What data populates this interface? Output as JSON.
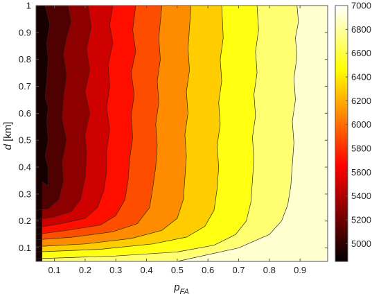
{
  "chart_data": {
    "type": "heatmap",
    "subtype": "filled-contour",
    "x": {
      "label_main": "p",
      "label_sub": "FA",
      "lim": [
        0.04,
        0.99
      ],
      "ticks": [
        0.1,
        0.2,
        0.3,
        0.4,
        0.5,
        0.6,
        0.7,
        0.8,
        0.9
      ],
      "tick_labels": [
        "0.1",
        "0.2",
        "0.3",
        "0.4",
        "0.5",
        "0.6",
        "0.7",
        "0.8",
        "0.9"
      ]
    },
    "y": {
      "label_main": "d",
      "label_unit": "[km]",
      "lim": [
        0.05,
        1.0
      ],
      "ticks": [
        0.1,
        0.2,
        0.3,
        0.4,
        0.5,
        0.6,
        0.7,
        0.8,
        0.9,
        1.0
      ],
      "tick_labels": [
        "0.1",
        "0.2",
        "0.3",
        "0.4",
        "0.5",
        "0.6",
        "0.7",
        "0.8",
        "0.9",
        "1"
      ]
    },
    "colorbar": {
      "lim": [
        4850,
        7000
      ],
      "ticks": [
        5000,
        5200,
        5400,
        5600,
        5800,
        6000,
        6200,
        6400,
        6600,
        6800,
        7000
      ],
      "tick_labels": [
        "5000",
        "5200",
        "5400",
        "5600",
        "5800",
        "6000",
        "6200",
        "6400",
        "6600",
        "6800",
        "7000"
      ],
      "colormap": "hot"
    },
    "levels": [
      5000,
      5200,
      5400,
      5600,
      5800,
      6000,
      6200,
      6400,
      6600,
      6800
    ],
    "boundaries": [
      {
        "level": 5000,
        "points": [
          [
            0.06,
            0.345
          ],
          [
            0.08,
            0.33
          ],
          [
            0.08,
            0.4
          ],
          [
            0.07,
            0.44
          ],
          [
            0.08,
            0.5
          ],
          [
            0.075,
            0.57
          ],
          [
            0.08,
            0.62
          ],
          [
            0.07,
            0.66
          ],
          [
            0.075,
            0.72
          ],
          [
            0.08,
            0.8
          ],
          [
            0.075,
            0.86
          ],
          [
            0.085,
            0.93
          ],
          [
            0.07,
            1.0
          ]
        ]
      },
      {
        "level": 5200,
        "points": [
          [
            0.04,
            0.24
          ],
          [
            0.08,
            0.245
          ],
          [
            0.115,
            0.28
          ],
          [
            0.13,
            0.35
          ],
          [
            0.125,
            0.42
          ],
          [
            0.14,
            0.5
          ],
          [
            0.125,
            0.58
          ],
          [
            0.13,
            0.66
          ],
          [
            0.14,
            0.74
          ],
          [
            0.13,
            0.82
          ],
          [
            0.14,
            0.88
          ],
          [
            0.155,
            0.94
          ],
          [
            0.145,
            1.0
          ]
        ]
      },
      {
        "level": 5400,
        "points": [
          [
            0.04,
            0.205
          ],
          [
            0.1,
            0.215
          ],
          [
            0.155,
            0.235
          ],
          [
            0.185,
            0.28
          ],
          [
            0.2,
            0.36
          ],
          [
            0.205,
            0.45
          ],
          [
            0.2,
            0.52
          ],
          [
            0.215,
            0.6
          ],
          [
            0.2,
            0.68
          ],
          [
            0.215,
            0.76
          ],
          [
            0.205,
            0.84
          ],
          [
            0.22,
            0.92
          ],
          [
            0.21,
            1.0
          ]
        ]
      },
      {
        "level": 5600,
        "points": [
          [
            0.04,
            0.175
          ],
          [
            0.12,
            0.19
          ],
          [
            0.2,
            0.21
          ],
          [
            0.24,
            0.25
          ],
          [
            0.26,
            0.31
          ],
          [
            0.27,
            0.38
          ],
          [
            0.27,
            0.46
          ],
          [
            0.28,
            0.54
          ],
          [
            0.27,
            0.62
          ],
          [
            0.28,
            0.7
          ],
          [
            0.275,
            0.78
          ],
          [
            0.29,
            0.86
          ],
          [
            0.28,
            0.93
          ],
          [
            0.29,
            1.0
          ]
        ]
      },
      {
        "level": 5800,
        "points": [
          [
            0.04,
            0.15
          ],
          [
            0.14,
            0.165
          ],
          [
            0.25,
            0.185
          ],
          [
            0.3,
            0.22
          ],
          [
            0.33,
            0.28
          ],
          [
            0.34,
            0.35
          ],
          [
            0.345,
            0.43
          ],
          [
            0.355,
            0.51
          ],
          [
            0.35,
            0.59
          ],
          [
            0.36,
            0.67
          ],
          [
            0.35,
            0.75
          ],
          [
            0.365,
            0.83
          ],
          [
            0.355,
            0.91
          ],
          [
            0.365,
            1.0
          ]
        ]
      },
      {
        "level": 6000,
        "points": [
          [
            0.04,
            0.13
          ],
          [
            0.16,
            0.14
          ],
          [
            0.29,
            0.16
          ],
          [
            0.37,
            0.19
          ],
          [
            0.41,
            0.25
          ],
          [
            0.42,
            0.32
          ],
          [
            0.43,
            0.4
          ],
          [
            0.435,
            0.48
          ],
          [
            0.43,
            0.56
          ],
          [
            0.44,
            0.64
          ],
          [
            0.435,
            0.72
          ],
          [
            0.445,
            0.8
          ],
          [
            0.44,
            0.88
          ],
          [
            0.45,
            1.0
          ]
        ]
      },
      {
        "level": 6200,
        "points": [
          [
            0.04,
            0.105
          ],
          [
            0.2,
            0.115
          ],
          [
            0.35,
            0.135
          ],
          [
            0.45,
            0.165
          ],
          [
            0.5,
            0.21
          ],
          [
            0.52,
            0.28
          ],
          [
            0.525,
            0.36
          ],
          [
            0.53,
            0.44
          ],
          [
            0.525,
            0.52
          ],
          [
            0.535,
            0.6
          ],
          [
            0.53,
            0.68
          ],
          [
            0.54,
            0.76
          ],
          [
            0.535,
            0.84
          ],
          [
            0.545,
            1.0
          ]
        ]
      },
      {
        "level": 6400,
        "points": [
          [
            0.04,
            0.085
          ],
          [
            0.25,
            0.095
          ],
          [
            0.42,
            0.115
          ],
          [
            0.53,
            0.14
          ],
          [
            0.59,
            0.18
          ],
          [
            0.62,
            0.24
          ],
          [
            0.63,
            0.32
          ],
          [
            0.635,
            0.4
          ],
          [
            0.63,
            0.48
          ],
          [
            0.64,
            0.56
          ],
          [
            0.635,
            0.64
          ],
          [
            0.645,
            0.72
          ],
          [
            0.64,
            0.8
          ],
          [
            0.65,
            0.88
          ],
          [
            0.645,
            1.0
          ]
        ]
      },
      {
        "level": 6600,
        "points": [
          [
            0.04,
            0.06
          ],
          [
            0.3,
            0.07
          ],
          [
            0.5,
            0.085
          ],
          [
            0.62,
            0.11
          ],
          [
            0.69,
            0.15
          ],
          [
            0.725,
            0.2
          ],
          [
            0.74,
            0.27
          ],
          [
            0.745,
            0.35
          ],
          [
            0.75,
            0.43
          ],
          [
            0.745,
            0.51
          ],
          [
            0.755,
            0.59
          ],
          [
            0.75,
            0.67
          ],
          [
            0.76,
            0.75
          ],
          [
            0.755,
            0.83
          ],
          [
            0.765,
            0.91
          ],
          [
            0.76,
            1.0
          ]
        ]
      },
      {
        "level": 6800,
        "points": [
          [
            0.5,
            0.05
          ],
          [
            0.7,
            0.1
          ],
          [
            0.8,
            0.15
          ],
          [
            0.84,
            0.2
          ],
          [
            0.86,
            0.26
          ],
          [
            0.87,
            0.33
          ],
          [
            0.875,
            0.41
          ],
          [
            0.88,
            0.49
          ],
          [
            0.875,
            0.57
          ],
          [
            0.885,
            0.65
          ],
          [
            0.88,
            0.73
          ],
          [
            0.89,
            0.81
          ],
          [
            0.885,
            0.88
          ],
          [
            0.895,
            0.94
          ],
          [
            0.89,
            1.0
          ]
        ]
      }
    ]
  }
}
